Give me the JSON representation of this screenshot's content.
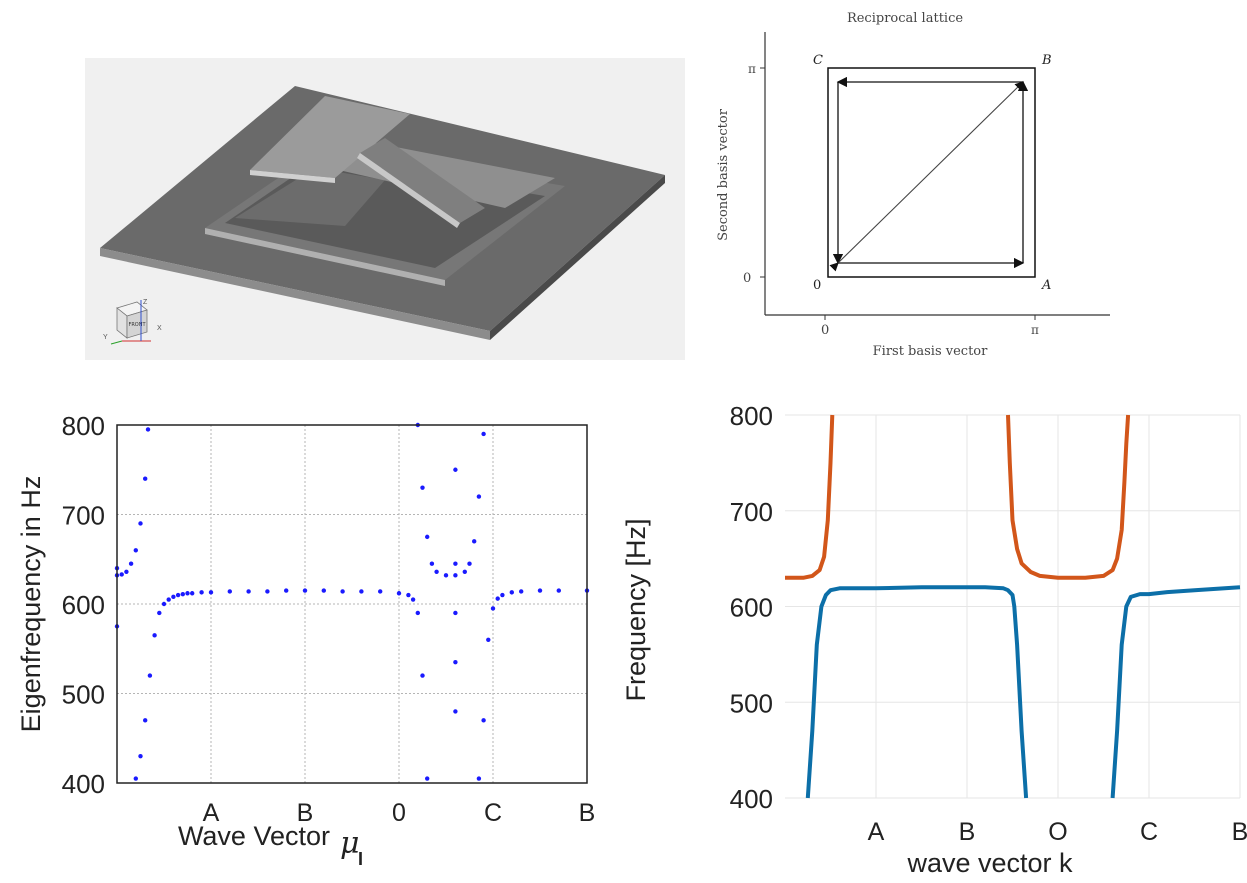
{
  "model_view": {
    "orientation_cube_label": "FRONT",
    "axis_labels": [
      "X",
      "Y",
      "Z"
    ]
  },
  "reciprocal_lattice": {
    "title": "Reciprocal lattice",
    "xlabel": "First basis vector",
    "ylabel": "Second basis vector",
    "xticks": [
      "0",
      "π"
    ],
    "yticks": [
      "0",
      "π"
    ],
    "corner_labels": {
      "origin": "0",
      "a": "A",
      "b": "B",
      "c": "C"
    },
    "path": [
      "0",
      "A",
      "B",
      "C",
      "0",
      "B"
    ]
  },
  "chart_data": [
    {
      "type": "scatter",
      "xlabel": "Wave Vector",
      "xlabel_symbol": "μ",
      "xlabel_subscript": "I",
      "ylabel": "Eigenfrequency in Hz",
      "ylim": [
        400,
        800
      ],
      "yticks": [
        400,
        500,
        600,
        700,
        800
      ],
      "xticks": [
        "A",
        "B",
        "0",
        "C",
        "B"
      ],
      "xlim": [
        0,
        5
      ],
      "grid": true,
      "color": "#1a1aff",
      "series": [
        {
          "x": [
            0.2,
            0.25,
            0.3,
            0.35,
            0.4,
            0.45,
            0.5,
            0.55,
            0.6,
            0.65,
            0.7,
            0.75,
            0.8,
            0.9,
            1.0,
            1.2,
            1.4,
            1.6,
            1.8,
            2.0,
            2.2,
            2.4,
            2.6,
            2.8,
            3.0,
            3.1,
            3.15,
            3.2,
            3.25,
            3.3
          ],
          "y": [
            405,
            430,
            470,
            520,
            565,
            590,
            600,
            605,
            608,
            610,
            611,
            612,
            612,
            613,
            613,
            614,
            614,
            614,
            615,
            615,
            615,
            614,
            614,
            614,
            612,
            610,
            605,
            590,
            520,
            405
          ]
        },
        {
          "x": [
            0.0,
            0.05,
            0.1,
            0.15,
            0.2,
            0.25,
            0.3,
            0.33
          ],
          "y": [
            632,
            633,
            636,
            645,
            660,
            690,
            740,
            795
          ]
        },
        {
          "x": [
            3.2,
            3.25,
            3.3,
            3.35,
            3.4,
            3.5,
            3.6,
            3.7,
            3.75,
            3.8,
            3.85,
            3.9
          ],
          "y": [
            800,
            730,
            675,
            645,
            636,
            632,
            632,
            636,
            645,
            670,
            720,
            790
          ]
        },
        {
          "x": [
            3.6,
            3.6,
            3.6,
            3.6,
            3.6
          ],
          "y": [
            750,
            645,
            590,
            535,
            480
          ]
        },
        {
          "x": [
            3.85,
            3.9,
            3.95,
            4.0,
            4.05,
            4.1,
            4.2,
            4.3,
            4.5,
            4.7,
            5.0
          ],
          "y": [
            405,
            470,
            560,
            595,
            606,
            610,
            613,
            614,
            615,
            615,
            615
          ]
        },
        {
          "x": [
            0.0,
            0.0
          ],
          "y": [
            640,
            575
          ]
        }
      ]
    },
    {
      "type": "line",
      "xlabel": "wave vector k",
      "ylabel": "Frequency [Hz]",
      "ylim": [
        400,
        800
      ],
      "yticks": [
        400,
        500,
        600,
        700,
        800
      ],
      "xticks": [
        "A",
        "B",
        "O",
        "C",
        "B"
      ],
      "xlim": [
        0,
        5
      ],
      "grid": true,
      "series": [
        {
          "color": "#0c6fa8",
          "x": [
            0.25,
            0.3,
            0.35,
            0.4,
            0.45,
            0.5,
            0.6,
            0.8,
            1.0,
            1.5,
            2.0,
            2.2,
            2.4,
            2.45,
            2.5,
            2.52,
            2.55,
            2.6,
            2.65
          ],
          "y": [
            400,
            470,
            560,
            600,
            612,
            617,
            619,
            619,
            619,
            620,
            620,
            620,
            619,
            617,
            612,
            600,
            560,
            470,
            400
          ]
        },
        {
          "color": "#0c6fa8",
          "x": [
            3.6,
            3.65,
            3.7,
            3.75,
            3.8,
            3.9,
            4.0,
            4.2,
            4.5,
            5.0
          ],
          "y": [
            400,
            470,
            560,
            600,
            610,
            613,
            613,
            615,
            617,
            620
          ]
        },
        {
          "color": "#d2561a",
          "x": [
            0.0,
            0.2,
            0.3,
            0.38,
            0.43,
            0.47,
            0.5,
            0.52
          ],
          "y": [
            630,
            630,
            632,
            638,
            652,
            690,
            750,
            800
          ]
        },
        {
          "color": "#d2561a",
          "x": [
            2.45,
            2.47,
            2.5,
            2.55,
            2.6,
            2.7,
            2.8,
            3.0,
            3.3,
            3.5,
            3.6,
            3.65,
            3.7,
            3.73,
            3.75,
            3.77
          ],
          "y": [
            800,
            750,
            690,
            660,
            645,
            636,
            632,
            630,
            630,
            632,
            638,
            650,
            680,
            730,
            770,
            800
          ]
        }
      ]
    }
  ]
}
